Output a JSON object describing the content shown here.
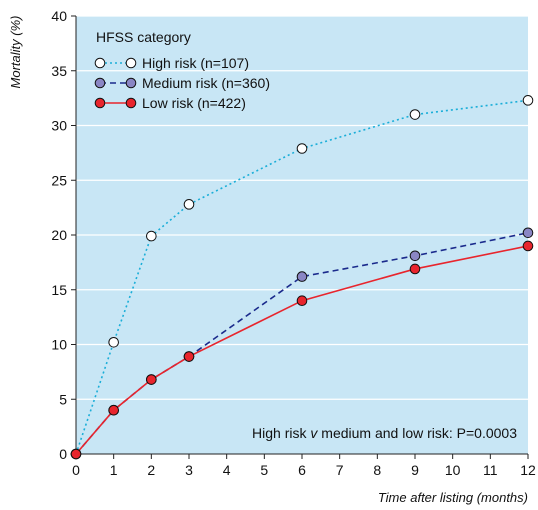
{
  "chart_data": {
    "type": "line",
    "title": "",
    "xlabel": "Time after listing (months)",
    "ylabel": "Mortality (%)",
    "xlim": [
      0,
      12
    ],
    "ylim": [
      0,
      40
    ],
    "x_ticks": [
      0,
      1,
      2,
      3,
      4,
      5,
      6,
      7,
      8,
      9,
      10,
      11,
      12
    ],
    "y_ticks": [
      0,
      5,
      10,
      15,
      20,
      25,
      30,
      35,
      40
    ],
    "grid": "horizontal",
    "background_color": "#c8e6f5",
    "legend": {
      "title": "HFSS category",
      "placement": "top-left"
    },
    "annotation": "High risk v medium and low risk: P=0.0003",
    "annotation_parts": {
      "before_italic": "High risk ",
      "italic": "v",
      "after_italic": " medium and low risk: P=0.0003"
    },
    "series": [
      {
        "name": "High risk (n=107)",
        "line_color": "#1aaed8",
        "line_style": "dotted",
        "marker_fill": "#ffffff",
        "x": [
          0,
          1,
          2,
          3,
          6,
          9,
          12
        ],
        "values": [
          0,
          10.2,
          19.9,
          22.8,
          27.9,
          31.0,
          32.3
        ]
      },
      {
        "name": "Medium risk (n=360)",
        "line_color": "#1a2a8c",
        "line_style": "dashed",
        "marker_fill": "#8a86c4",
        "x": [
          0,
          1,
          2,
          3,
          6,
          9,
          12
        ],
        "values": [
          0,
          4.0,
          6.8,
          8.9,
          16.2,
          18.1,
          20.2
        ]
      },
      {
        "name": "Low risk (n=422)",
        "line_color": "#e8252d",
        "line_style": "solid",
        "marker_fill": "#e8252d",
        "x": [
          0,
          1,
          2,
          3,
          6,
          9,
          12
        ],
        "values": [
          0,
          4.0,
          6.8,
          8.9,
          14.0,
          16.9,
          19.0
        ]
      }
    ]
  }
}
